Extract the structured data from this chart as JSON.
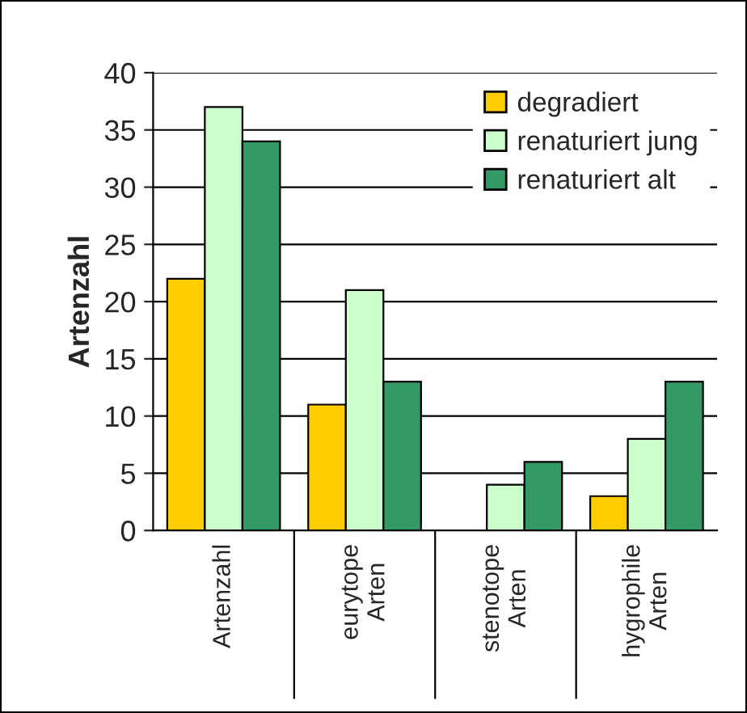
{
  "chart_data": {
    "type": "bar",
    "ylabel": "Artenzahl",
    "categories": [
      "Artenzahl",
      "eurytope\nArten",
      "stenotope\nArten",
      "hygrophile\nArten"
    ],
    "series": [
      {
        "name": "degradiert",
        "color": "#ffcc00",
        "values": [
          22,
          11,
          null,
          3
        ]
      },
      {
        "name": "renaturiert jung",
        "color": "#ccffcc",
        "values": [
          37,
          21,
          4,
          8
        ]
      },
      {
        "name": "renaturiert alt",
        "color": "#339966",
        "values": [
          34,
          13,
          6,
          13
        ]
      }
    ],
    "ylim": [
      0,
      40
    ],
    "yticks": [
      0,
      5,
      10,
      15,
      20,
      25,
      30,
      35,
      40
    ],
    "grid": "y",
    "legend": "top right"
  }
}
